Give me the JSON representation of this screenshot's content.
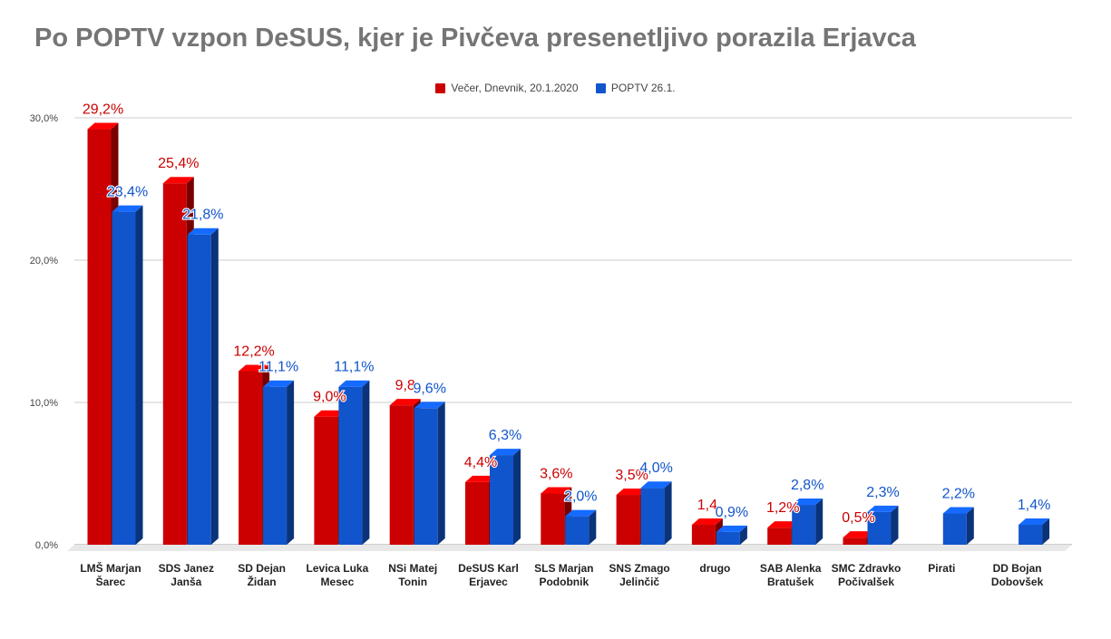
{
  "chart_data": {
    "type": "bar",
    "title": "Po POPTV vzpon DeSUS, kjer je Pivčeva presenetljivo porazila Erjavca",
    "legend_position": "top",
    "grid": true,
    "ylim": [
      0,
      30
    ],
    "yticks": [
      "0,0%",
      "10,0%",
      "20,0%",
      "30,0%"
    ],
    "categories": [
      [
        "LMŠ Marjan",
        "Šarec"
      ],
      [
        "SDS Janez",
        "Janša"
      ],
      [
        "SD Dejan",
        "Židan"
      ],
      [
        "Levica Luka",
        "Mesec"
      ],
      [
        "NSi Matej",
        "Tonin"
      ],
      [
        "DeSUS Karl",
        "Erjavec"
      ],
      [
        "SLS Marjan",
        "Podobnik"
      ],
      [
        "SNS Zmago",
        "Jelinčič"
      ],
      [
        "drugo"
      ],
      [
        "SAB Alenka",
        "Bratušek"
      ],
      [
        "SMC Zdravko",
        "Počivalšek"
      ],
      [
        "Pirati"
      ],
      [
        "DD Bojan",
        "Dobovšek"
      ]
    ],
    "series": [
      {
        "name": "Večer, Dnevnik, 20.1.2020",
        "color": "#cc0000",
        "values": [
          29.2,
          25.4,
          12.2,
          9.0,
          9.8,
          4.4,
          3.6,
          3.5,
          1.4,
          1.2,
          0.5,
          null,
          null
        ],
        "labels": [
          "29,2%",
          "25,4%",
          "12,2%",
          "9,0%",
          "9,8",
          "4,4%",
          "3,6%",
          "3,5%",
          "1,4",
          "1,2%",
          "0,5%",
          "",
          ""
        ]
      },
      {
        "name": "POPTV 26.1.",
        "color": "#1155cc",
        "values": [
          23.4,
          21.8,
          11.1,
          11.1,
          9.6,
          6.3,
          2.0,
          4.0,
          0.9,
          2.8,
          2.3,
          2.2,
          1.4
        ],
        "labels": [
          "23,4%",
          "21,8%",
          "11,1%",
          "11,1%",
          "9,6%",
          "6,3%",
          "2,0%",
          "4,0%",
          "0,9%",
          "2,8%",
          "2,3%",
          "2,2%",
          "1,4%"
        ]
      }
    ]
  }
}
